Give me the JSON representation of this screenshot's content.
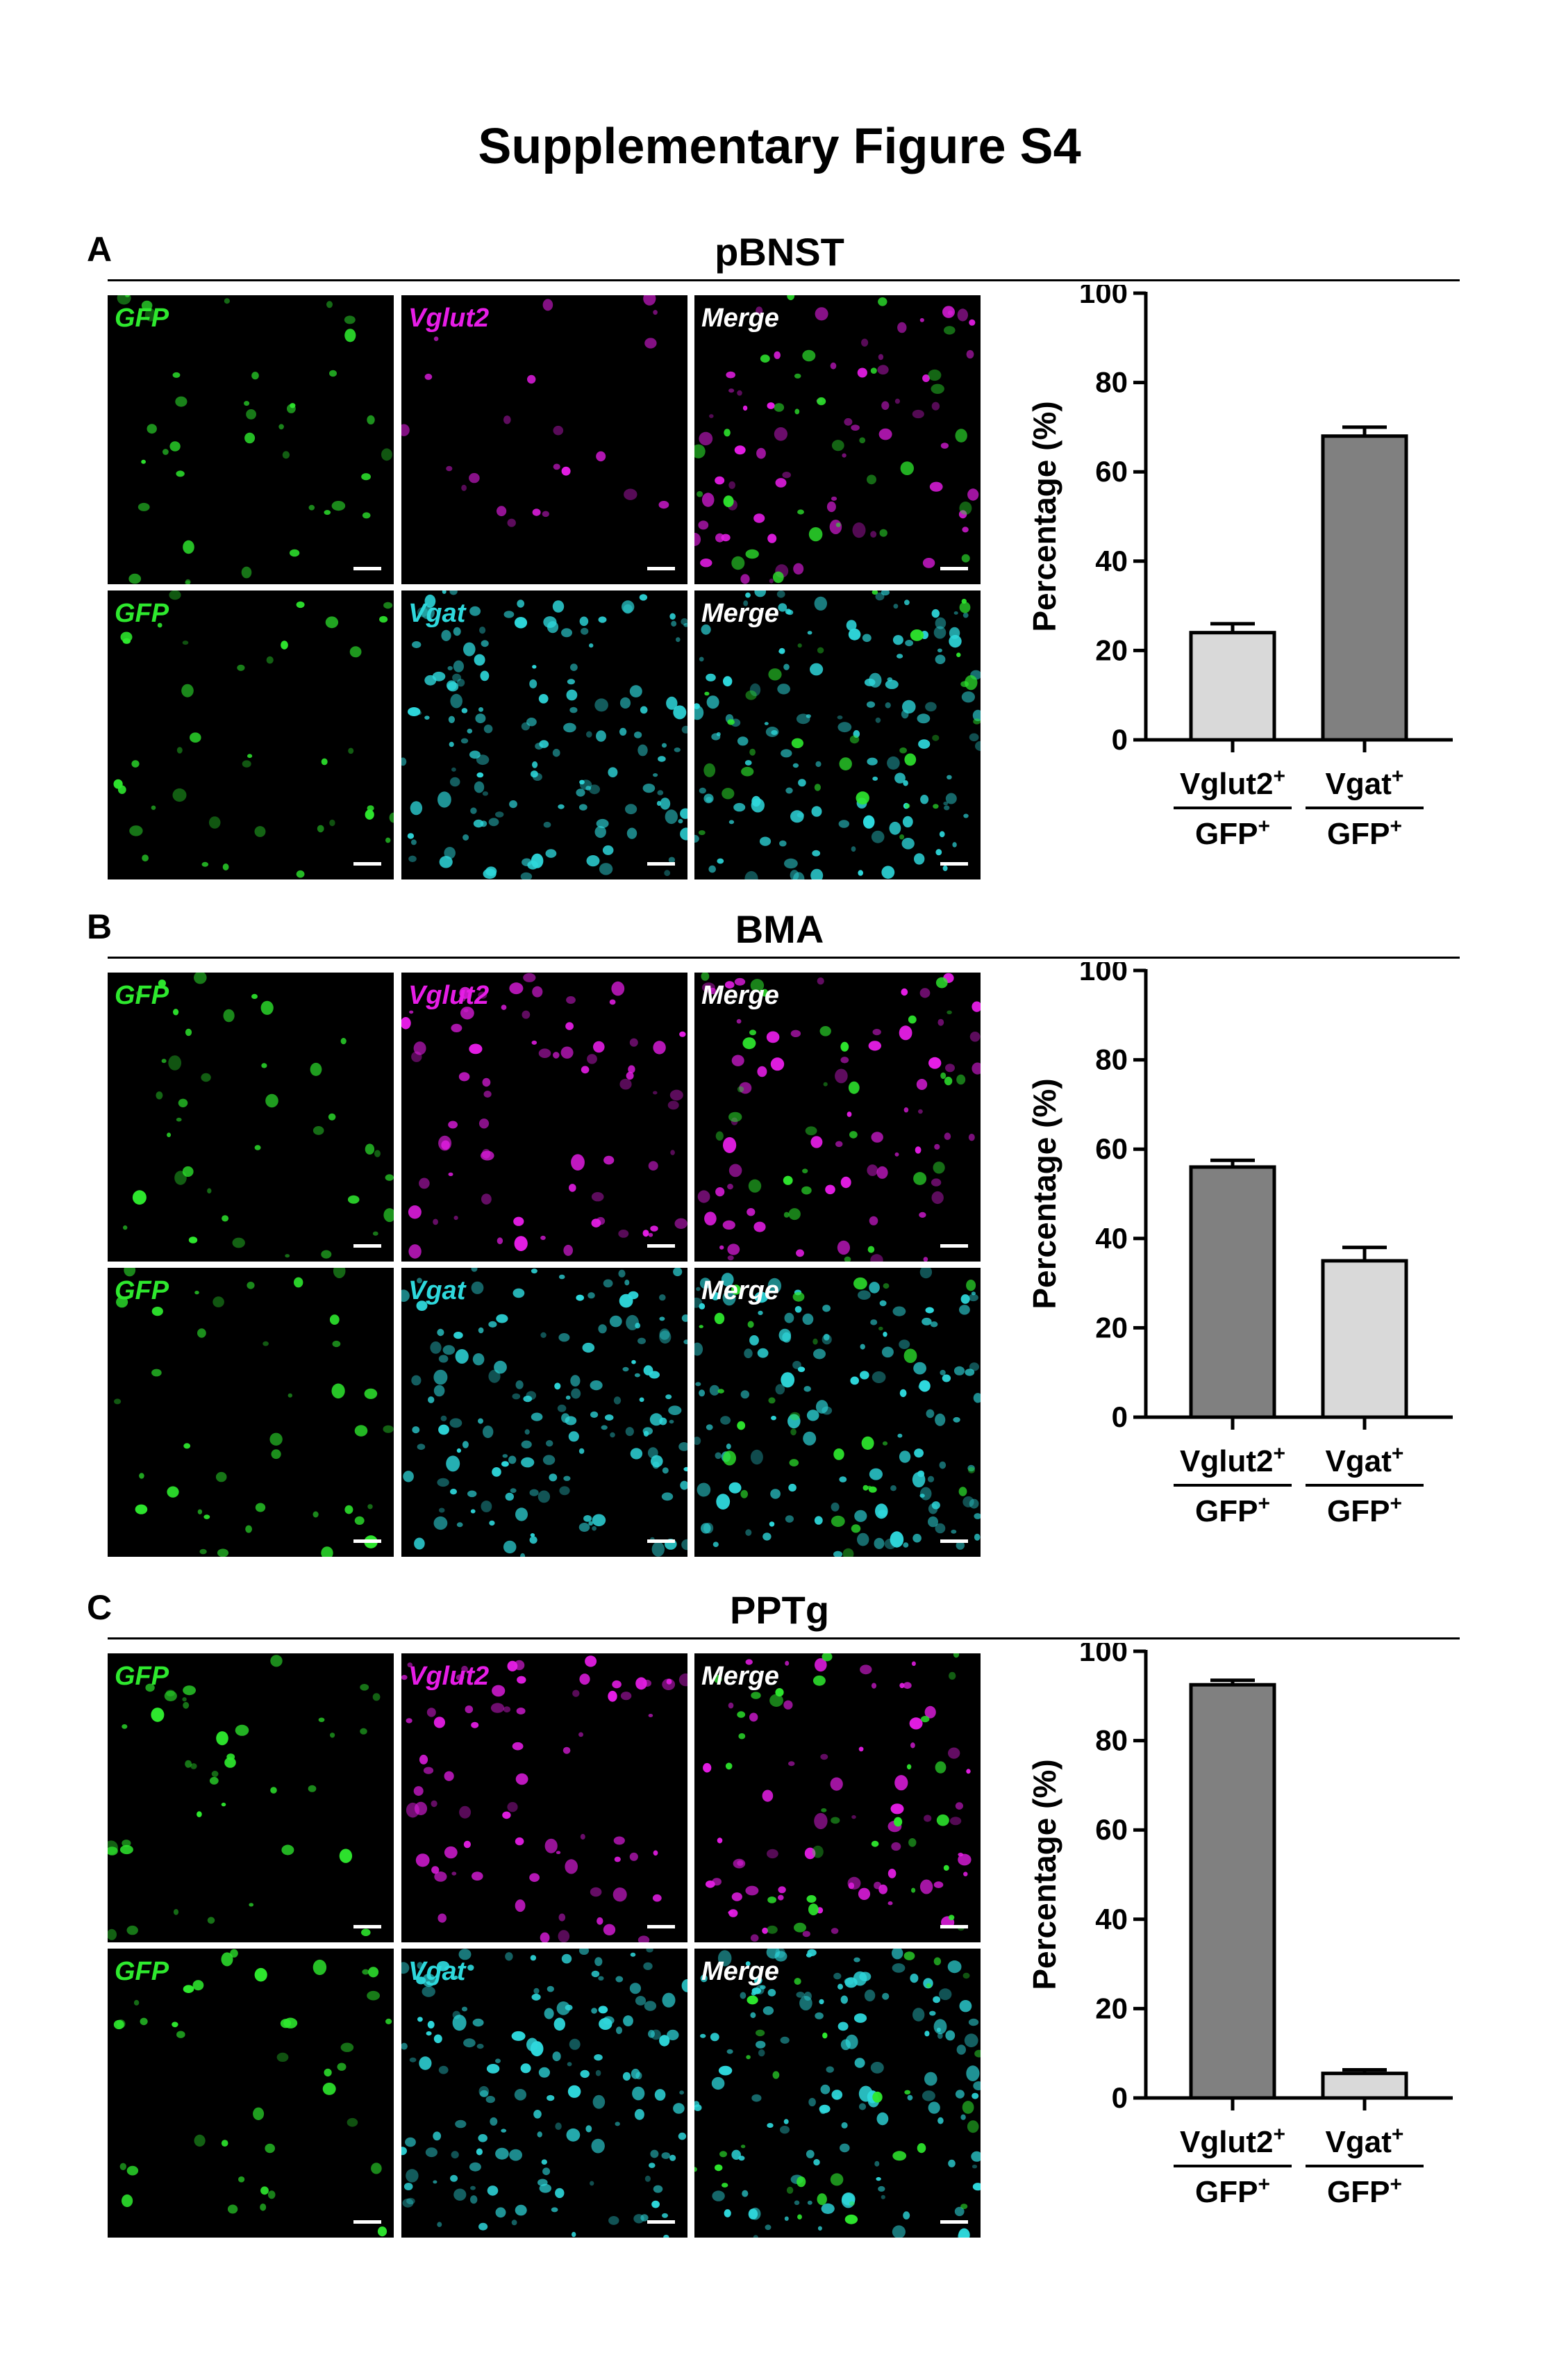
{
  "figure_title": "Supplementary Figure S4",
  "colors": {
    "gfp": "#2ee82e",
    "vglut2": "#e61de6",
    "vgat": "#2ed8dc",
    "merge": "#ffffff",
    "bar_dark": "#808080",
    "bar_light": "#d9d9d9"
  },
  "panels": [
    {
      "letter": "A",
      "region": "pBNST",
      "rows": [
        [
          {
            "label": "GFP",
            "channel": "gfp"
          },
          {
            "label": "Vglut2",
            "channel": "vglut2"
          },
          {
            "label": "Merge",
            "channel": "merge"
          }
        ],
        [
          {
            "label": "GFP",
            "channel": "gfp"
          },
          {
            "label": "Vgat",
            "channel": "vgat"
          },
          {
            "label": "Merge",
            "channel": "merge"
          }
        ]
      ]
    },
    {
      "letter": "B",
      "region": "BMA",
      "rows": [
        [
          {
            "label": "GFP",
            "channel": "gfp"
          },
          {
            "label": "Vglut2",
            "channel": "vglut2"
          },
          {
            "label": "Merge",
            "channel": "merge"
          }
        ],
        [
          {
            "label": "GFP",
            "channel": "gfp"
          },
          {
            "label": "Vgat",
            "channel": "vgat"
          },
          {
            "label": "Merge",
            "channel": "merge"
          }
        ]
      ]
    },
    {
      "letter": "C",
      "region": "PPTg",
      "rows": [
        [
          {
            "label": "GFP",
            "channel": "gfp"
          },
          {
            "label": "Vglut2",
            "channel": "vglut2"
          },
          {
            "label": "Merge",
            "channel": "merge"
          }
        ],
        [
          {
            "label": "GFP",
            "channel": "gfp"
          },
          {
            "label": "Vgat",
            "channel": "vgat"
          },
          {
            "label": "Merge",
            "channel": "merge"
          }
        ]
      ]
    }
  ],
  "chart_data": [
    {
      "type": "bar",
      "panel": "A",
      "ylabel": "Percentage (%)",
      "ylim": [
        0,
        100
      ],
      "yticks": [
        0,
        20,
        40,
        60,
        80,
        100
      ],
      "categories": [
        {
          "num": "Vglut2",
          "den": "GFP"
        },
        {
          "num": "Vgat",
          "den": "GFP"
        }
      ],
      "values": [
        24,
        68
      ],
      "errors": [
        2,
        2
      ],
      "bar_colors": [
        "#d9d9d9",
        "#808080"
      ]
    },
    {
      "type": "bar",
      "panel": "B",
      "ylabel": "Percentage (%)",
      "ylim": [
        0,
        100
      ],
      "yticks": [
        0,
        20,
        40,
        60,
        80,
        100
      ],
      "categories": [
        {
          "num": "Vglut2",
          "den": "GFP"
        },
        {
          "num": "Vgat",
          "den": "GFP"
        }
      ],
      "values": [
        56,
        35
      ],
      "errors": [
        1.5,
        3
      ],
      "bar_colors": [
        "#808080",
        "#d9d9d9"
      ]
    },
    {
      "type": "bar",
      "panel": "C",
      "ylabel": "Percentage (%)",
      "ylim": [
        0,
        100
      ],
      "yticks": [
        0,
        20,
        40,
        60,
        80,
        100
      ],
      "categories": [
        {
          "num": "Vglut2",
          "den": "GFP"
        },
        {
          "num": "Vgat",
          "den": "GFP"
        }
      ],
      "values": [
        92.5,
        5.5
      ],
      "errors": [
        1,
        0.8
      ],
      "bar_colors": [
        "#808080",
        "#d9d9d9"
      ]
    }
  ]
}
